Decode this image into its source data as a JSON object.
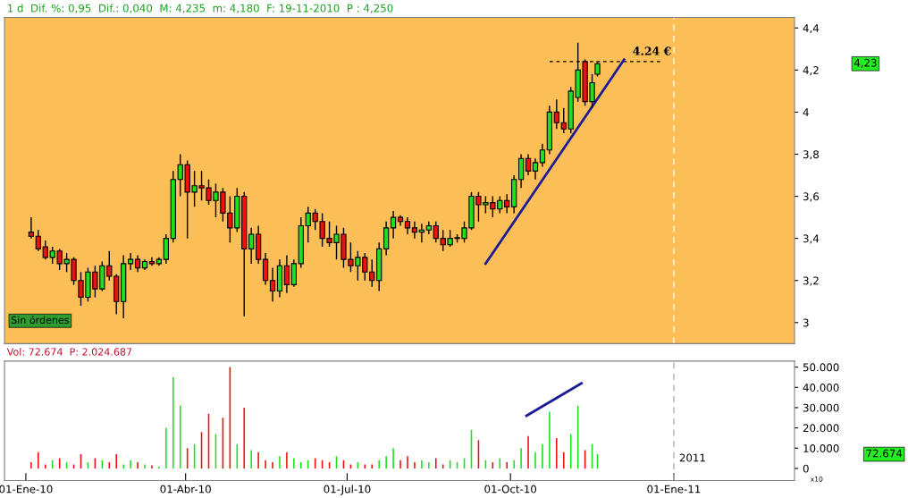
{
  "chart_data": [
    {
      "type": "candlestick",
      "x": [
        "2010-01-04",
        "2010-01-08",
        "2010-01-12",
        "2010-01-16",
        "2010-01-20",
        "2010-01-24",
        "2010-01-28",
        "2010-02-01",
        "2010-02-05",
        "2010-02-09",
        "2010-02-13",
        "2010-02-17",
        "2010-02-21",
        "2010-02-25",
        "2010-03-01",
        "2010-03-05",
        "2010-03-09",
        "2010-03-13",
        "2010-03-17",
        "2010-03-21",
        "2010-03-25",
        "2010-03-29",
        "2010-04-02",
        "2010-04-06",
        "2010-04-10",
        "2010-04-14",
        "2010-04-18",
        "2010-04-22",
        "2010-04-26",
        "2010-04-30",
        "2010-05-04",
        "2010-05-08",
        "2010-05-12",
        "2010-05-16",
        "2010-05-20",
        "2010-05-24",
        "2010-05-28",
        "2010-06-01",
        "2010-06-05",
        "2010-06-09",
        "2010-06-13",
        "2010-06-17",
        "2010-06-21",
        "2010-06-25",
        "2010-06-29",
        "2010-07-03",
        "2010-07-07",
        "2010-07-11",
        "2010-07-15",
        "2010-07-19",
        "2010-07-23",
        "2010-07-27",
        "2010-07-31",
        "2010-08-04",
        "2010-08-08",
        "2010-08-12",
        "2010-08-16",
        "2010-08-20",
        "2010-08-24",
        "2010-08-28",
        "2010-09-01",
        "2010-09-05",
        "2010-09-09",
        "2010-09-13",
        "2010-09-17",
        "2010-09-21",
        "2010-09-25",
        "2010-09-29",
        "2010-10-03",
        "2010-10-07",
        "2010-10-11",
        "2010-10-15",
        "2010-10-19",
        "2010-10-23",
        "2010-10-27",
        "2010-10-31",
        "2010-11-04",
        "2010-11-08",
        "2010-11-12",
        "2010-11-16",
        "2010-11-19"
      ],
      "ohlc": [
        [
          3.43,
          3.5,
          3.4,
          3.41
        ],
        [
          3.41,
          3.44,
          3.34,
          3.35
        ],
        [
          3.36,
          3.39,
          3.3,
          3.31
        ],
        [
          3.31,
          3.36,
          3.28,
          3.34
        ],
        [
          3.34,
          3.35,
          3.25,
          3.28
        ],
        [
          3.28,
          3.33,
          3.24,
          3.3
        ],
        [
          3.3,
          3.31,
          3.18,
          3.2
        ],
        [
          3.2,
          3.24,
          3.08,
          3.12
        ],
        [
          3.12,
          3.26,
          3.1,
          3.24
        ],
        [
          3.24,
          3.27,
          3.12,
          3.16
        ],
        [
          3.16,
          3.29,
          3.15,
          3.27
        ],
        [
          3.27,
          3.34,
          3.2,
          3.22
        ],
        [
          3.22,
          3.23,
          3.04,
          3.1
        ],
        [
          3.1,
          3.32,
          3.02,
          3.28
        ],
        [
          3.28,
          3.33,
          3.25,
          3.3
        ],
        [
          3.3,
          3.32,
          3.24,
          3.26
        ],
        [
          3.26,
          3.3,
          3.25,
          3.29
        ],
        [
          3.29,
          3.31,
          3.27,
          3.28
        ],
        [
          3.28,
          3.31,
          3.27,
          3.3
        ],
        [
          3.3,
          3.42,
          3.28,
          3.4
        ],
        [
          3.4,
          3.72,
          3.38,
          3.68
        ],
        [
          3.68,
          3.8,
          3.6,
          3.75
        ],
        [
          3.75,
          3.77,
          3.4,
          3.62
        ],
        [
          3.62,
          3.72,
          3.55,
          3.65
        ],
        [
          3.65,
          3.72,
          3.58,
          3.64
        ],
        [
          3.64,
          3.68,
          3.56,
          3.58
        ],
        [
          3.58,
          3.66,
          3.5,
          3.62
        ],
        [
          3.62,
          3.64,
          3.48,
          3.52
        ],
        [
          3.52,
          3.6,
          3.38,
          3.45
        ],
        [
          3.45,
          3.64,
          3.43,
          3.6
        ],
        [
          3.6,
          3.62,
          3.03,
          3.35
        ],
        [
          3.35,
          3.45,
          3.28,
          3.42
        ],
        [
          3.42,
          3.46,
          3.28,
          3.3
        ],
        [
          3.3,
          3.33,
          3.18,
          3.2
        ],
        [
          3.2,
          3.26,
          3.1,
          3.15
        ],
        [
          3.15,
          3.3,
          3.12,
          3.27
        ],
        [
          3.27,
          3.32,
          3.14,
          3.18
        ],
        [
          3.18,
          3.3,
          3.17,
          3.28
        ],
        [
          3.28,
          3.5,
          3.26,
          3.46
        ],
        [
          3.46,
          3.55,
          3.38,
          3.52
        ],
        [
          3.52,
          3.54,
          3.44,
          3.48
        ],
        [
          3.48,
          3.52,
          3.36,
          3.4
        ],
        [
          3.4,
          3.48,
          3.36,
          3.38
        ],
        [
          3.38,
          3.46,
          3.3,
          3.42
        ],
        [
          3.42,
          3.45,
          3.26,
          3.3
        ],
        [
          3.3,
          3.38,
          3.24,
          3.27
        ],
        [
          3.27,
          3.34,
          3.2,
          3.31
        ],
        [
          3.31,
          3.33,
          3.2,
          3.24
        ],
        [
          3.24,
          3.3,
          3.17,
          3.2
        ],
        [
          3.2,
          3.38,
          3.15,
          3.35
        ],
        [
          3.35,
          3.48,
          3.32,
          3.45
        ],
        [
          3.45,
          3.53,
          3.4,
          3.5
        ],
        [
          3.5,
          3.51,
          3.46,
          3.48
        ],
        [
          3.48,
          3.5,
          3.42,
          3.45
        ],
        [
          3.45,
          3.48,
          3.4,
          3.43
        ],
        [
          3.43,
          3.47,
          3.38,
          3.44
        ],
        [
          3.44,
          3.48,
          3.42,
          3.46
        ],
        [
          3.46,
          3.48,
          3.38,
          3.4
        ],
        [
          3.4,
          3.44,
          3.34,
          3.37
        ],
        [
          3.37,
          3.44,
          3.36,
          3.4
        ],
        [
          3.4,
          3.42,
          3.38,
          3.4
        ],
        [
          3.4,
          3.48,
          3.38,
          3.45
        ],
        [
          3.45,
          3.62,
          3.44,
          3.6
        ],
        [
          3.6,
          3.62,
          3.48,
          3.56
        ],
        [
          3.56,
          3.6,
          3.52,
          3.57
        ],
        [
          3.57,
          3.6,
          3.5,
          3.54
        ],
        [
          3.54,
          3.6,
          3.52,
          3.58
        ],
        [
          3.58,
          3.61,
          3.52,
          3.55
        ],
        [
          3.55,
          3.7,
          3.52,
          3.68
        ],
        [
          3.68,
          3.8,
          3.64,
          3.78
        ],
        [
          3.78,
          3.8,
          3.7,
          3.72
        ],
        [
          3.72,
          3.78,
          3.68,
          3.76
        ],
        [
          3.76,
          3.85,
          3.74,
          3.82
        ],
        [
          3.82,
          4.03,
          3.8,
          4.0
        ],
        [
          4.0,
          4.06,
          3.92,
          3.95
        ],
        [
          3.95,
          4.02,
          3.9,
          3.92
        ],
        [
          3.92,
          4.12,
          3.9,
          4.1
        ],
        [
          4.07,
          4.33,
          4.05,
          4.2
        ],
        [
          4.24,
          4.25,
          4.03,
          4.05
        ],
        [
          4.05,
          4.18,
          4.02,
          4.14
        ],
        [
          4.18,
          4.24,
          4.17,
          4.23
        ]
      ],
      "colors": [
        "#f01010",
        "#f01010",
        "#f01010",
        "#1fe01f",
        "#f01010",
        "#1fe01f",
        "#f01010",
        "#f01010",
        "#1fe01f",
        "#f01010",
        "#1fe01f",
        "#f01010",
        "#f01010",
        "#1fe01f",
        "#1fe01f",
        "#f01010",
        "#1fe01f",
        "#f01010",
        "#1fe01f",
        "#1fe01f",
        "#1fe01f",
        "#1fe01f",
        "#f01010",
        "#1fe01f",
        "#f01010",
        "#f01010",
        "#1fe01f",
        "#f01010",
        "#f01010",
        "#1fe01f",
        "#f01010",
        "#1fe01f",
        "#f01010",
        "#f01010",
        "#f01010",
        "#1fe01f",
        "#f01010",
        "#1fe01f",
        "#1fe01f",
        "#1fe01f",
        "#f01010",
        "#f01010",
        "#f01010",
        "#1fe01f",
        "#f01010",
        "#f01010",
        "#1fe01f",
        "#f01010",
        "#f01010",
        "#1fe01f",
        "#1fe01f",
        "#1fe01f",
        "#f01010",
        "#f01010",
        "#f01010",
        "#1fe01f",
        "#1fe01f",
        "#f01010",
        "#f01010",
        "#1fe01f",
        "#1fe01f",
        "#1fe01f",
        "#1fe01f",
        "#f01010",
        "#1fe01f",
        "#f01010",
        "#1fe01f",
        "#f01010",
        "#1fe01f",
        "#1fe01f",
        "#f01010",
        "#1fe01f",
        "#1fe01f",
        "#1fe01f",
        "#f01010",
        "#f01010",
        "#1fe01f",
        "#1fe01f",
        "#f01010",
        "#1fe01f",
        "#1fe01f"
      ],
      "series": [
        {
          "type": "line",
          "color": "#1c1c96",
          "x": [
            "2010-09-17",
            "2010-12-04"
          ],
          "values": [
            3.28,
            4.25
          ]
        }
      ],
      "xlim": [
        "2009-12-20",
        "2011-03-10"
      ],
      "ylim": [
        2.9,
        4.45
      ],
      "yticks": [
        3,
        {
          "value": 3.2,
          "label": "3,2"
        },
        {
          "value": 3.4,
          "label": "3,4"
        },
        {
          "value": 3.6,
          "label": "3,6"
        },
        {
          "value": 3.8,
          "label": "3,8"
        },
        4,
        {
          "value": 4.2,
          "label": "4,2"
        },
        {
          "value": 4.4,
          "label": "4,4"
        }
      ],
      "tick_labels": "y",
      "grid": false,
      "ref_lines": [
        {
          "axis": "x",
          "value": "2011-01-01",
          "color": "#ffffff",
          "line_style": "dashed"
        },
        {
          "axis": "y",
          "value": 4.24,
          "label": "4.24 €",
          "color": "#000000",
          "line_style": "dotted"
        }
      ],
      "annotations": [
        "1 d  Dif. %: 0,95  Dif.: 0,040  M: 4,235  m: 4,180  F: 19-11-2010  P : 4,250",
        "Sin órdenes",
        "4,23"
      ]
    },
    {
      "type": "bar",
      "x": [
        "2010-01-04",
        "2010-01-08",
        "2010-01-12",
        "2010-01-16",
        "2010-01-20",
        "2010-01-24",
        "2010-01-28",
        "2010-02-01",
        "2010-02-05",
        "2010-02-09",
        "2010-02-13",
        "2010-02-17",
        "2010-02-21",
        "2010-02-25",
        "2010-03-01",
        "2010-03-05",
        "2010-03-09",
        "2010-03-13",
        "2010-03-17",
        "2010-03-21",
        "2010-03-25",
        "2010-03-29",
        "2010-04-02",
        "2010-04-06",
        "2010-04-10",
        "2010-04-14",
        "2010-04-18",
        "2010-04-22",
        "2010-04-26",
        "2010-04-30",
        "2010-05-04",
        "2010-05-08",
        "2010-05-12",
        "2010-05-16",
        "2010-05-20",
        "2010-05-24",
        "2010-05-28",
        "2010-06-01",
        "2010-06-05",
        "2010-06-09",
        "2010-06-13",
        "2010-06-17",
        "2010-06-21",
        "2010-06-25",
        "2010-06-29",
        "2010-07-03",
        "2010-07-07",
        "2010-07-11",
        "2010-07-15",
        "2010-07-19",
        "2010-07-23",
        "2010-07-27",
        "2010-07-31",
        "2010-08-04",
        "2010-08-08",
        "2010-08-12",
        "2010-08-16",
        "2010-08-20",
        "2010-08-24",
        "2010-08-28",
        "2010-09-01",
        "2010-09-05",
        "2010-09-09",
        "2010-09-13",
        "2010-09-17",
        "2010-09-21",
        "2010-09-25",
        "2010-09-29",
        "2010-10-03",
        "2010-10-07",
        "2010-10-11",
        "2010-10-15",
        "2010-10-19",
        "2010-10-23",
        "2010-10-27",
        "2010-10-31",
        "2010-11-04",
        "2010-11-08",
        "2010-11-12",
        "2010-11-16",
        "2010-11-19"
      ],
      "values": [
        3000,
        8000,
        2000,
        4000,
        5000,
        3000,
        2000,
        7000,
        3000,
        5000,
        4000,
        3000,
        7000,
        2000,
        4000,
        3000,
        2000,
        1500,
        1000,
        20000,
        45000,
        31000,
        10000,
        12000,
        18000,
        27000,
        17000,
        25000,
        50000,
        12000,
        30000,
        9000,
        8000,
        4000,
        3000,
        6000,
        8000,
        5000,
        3000,
        4000,
        5000,
        4000,
        3000,
        6000,
        4000,
        2000,
        3000,
        2000,
        2000,
        4000,
        6000,
        10000,
        4000,
        6000,
        3000,
        4000,
        3000,
        5000,
        2000,
        4000,
        3000,
        5000,
        19000,
        14000,
        4000,
        3000,
        5000,
        3000,
        4000,
        10000,
        16000,
        8000,
        12000,
        28000,
        15000,
        8000,
        17000,
        31000,
        9000,
        12000,
        7000
      ],
      "colors": [
        "#f01010",
        "#f01010",
        "#f01010",
        "#1fe01f",
        "#f01010",
        "#1fe01f",
        "#f01010",
        "#f01010",
        "#1fe01f",
        "#f01010",
        "#1fe01f",
        "#f01010",
        "#f01010",
        "#1fe01f",
        "#1fe01f",
        "#f01010",
        "#1fe01f",
        "#f01010",
        "#1fe01f",
        "#1fe01f",
        "#1fe01f",
        "#1fe01f",
        "#f01010",
        "#1fe01f",
        "#f01010",
        "#f01010",
        "#1fe01f",
        "#f01010",
        "#f01010",
        "#1fe01f",
        "#f01010",
        "#1fe01f",
        "#f01010",
        "#f01010",
        "#f01010",
        "#1fe01f",
        "#f01010",
        "#1fe01f",
        "#1fe01f",
        "#1fe01f",
        "#f01010",
        "#f01010",
        "#f01010",
        "#1fe01f",
        "#f01010",
        "#f01010",
        "#1fe01f",
        "#f01010",
        "#f01010",
        "#1fe01f",
        "#1fe01f",
        "#1fe01f",
        "#f01010",
        "#f01010",
        "#f01010",
        "#1fe01f",
        "#1fe01f",
        "#f01010",
        "#f01010",
        "#1fe01f",
        "#1fe01f",
        "#1fe01f",
        "#1fe01f",
        "#f01010",
        "#1fe01f",
        "#f01010",
        "#1fe01f",
        "#f01010",
        "#1fe01f",
        "#1fe01f",
        "#f01010",
        "#1fe01f",
        "#1fe01f",
        "#1fe01f",
        "#f01010",
        "#f01010",
        "#1fe01f",
        "#1fe01f",
        "#f01010",
        "#1fe01f",
        "#1fe01f"
      ],
      "series": [
        {
          "type": "line",
          "color": "#1c1c96",
          "x": [
            "2010-10-10",
            "2010-11-10"
          ],
          "values": [
            26000,
            42000
          ]
        }
      ],
      "xlim": [
        "2009-12-20",
        "2011-03-10"
      ],
      "xticks": [
        {
          "value": "2010-01-01",
          "label": "01-Ene-10"
        },
        {
          "value": "2010-04-01",
          "label": "01-Abr-10"
        },
        {
          "value": "2010-07-01",
          "label": "01-Jul-10"
        },
        {
          "value": "2010-10-01",
          "label": "01-Oct-10"
        },
        {
          "value": "2011-01-01",
          "label": "01-Ene-11"
        }
      ],
      "ylim": [
        -6000,
        53000
      ],
      "yticks": [
        0,
        {
          "value": 10000,
          "label": "10.000"
        },
        {
          "value": 20000,
          "label": "20.000"
        },
        {
          "value": 30000,
          "label": "30.000"
        },
        {
          "value": 40000,
          "label": "40.000"
        },
        {
          "value": 50000,
          "label": "50.000"
        }
      ],
      "grid": false,
      "ref_lines": [
        {
          "axis": "x",
          "value": "2011-01-01",
          "label": "2011",
          "color": "#b0b0b0",
          "line_style": "dashed"
        }
      ],
      "annotations": [
        "Vol: 72.674  P: 2.024.687",
        "72.674",
        "x10"
      ]
    }
  ]
}
